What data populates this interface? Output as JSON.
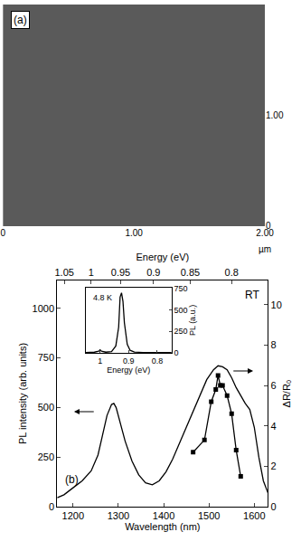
{
  "chart_data": [
    {
      "type": "image",
      "annotations": [
        "(a)"
      ],
      "x_label": "µm",
      "xlim": [
        0,
        2
      ],
      "xticks": [
        0,
        {
          "value": 1,
          "label": "1.00"
        },
        {
          "value": 2,
          "label": "2.00"
        }
      ],
      "ylim": [
        0,
        2
      ],
      "yticks": [
        0,
        {
          "value": 1,
          "label": "1.00"
        },
        {
          "value": 2,
          "label": "2.00"
        }
      ]
    },
    {
      "type": "line",
      "annotations": [
        "(b)",
        "RT"
      ],
      "x_label": "Wavelength (nm)",
      "y_label": "PL intensity (arb. units)",
      "y2_label": "ΔR/R₀",
      "x2_label": "Energy (eV)",
      "xlim": [
        1165,
        1630
      ],
      "xticks": [
        1200,
        1300,
        1400,
        1500,
        1600
      ],
      "x2lim": [
        1165,
        1630
      ],
      "x2ticks": [
        {
          "value": 1180.8,
          "label": "1.05"
        },
        {
          "value": 1239.8,
          "label": "1"
        },
        {
          "value": 1305.1,
          "label": "0.95"
        },
        {
          "value": 1377.6,
          "label": "0.9"
        },
        {
          "value": 1458.6,
          "label": "0.85"
        },
        {
          "value": 1549.8,
          "label": "0.8"
        }
      ],
      "ylim": [
        0,
        1140
      ],
      "yticks": [
        0,
        250,
        500,
        750,
        1000
      ],
      "y2lim": [
        0,
        11.2
      ],
      "y2ticks": [
        0,
        2,
        4,
        6,
        8,
        10
      ],
      "series": [
        {
          "color": "#000000",
          "line_style": "solid",
          "x": [
            1165,
            1180,
            1200,
            1220,
            1240,
            1255,
            1265,
            1275,
            1285,
            1290,
            1295,
            1305,
            1315,
            1330,
            1345,
            1360,
            1375,
            1390,
            1405,
            1420,
            1435,
            1450,
            1465,
            1480,
            1495,
            1510,
            1520,
            1530,
            1540,
            1550,
            1560,
            1570,
            1580,
            1590,
            1600,
            1610,
            1620,
            1630
          ],
          "values": [
            45,
            60,
            95,
            130,
            180,
            260,
            360,
            460,
            515,
            520,
            500,
            420,
            330,
            230,
            160,
            120,
            110,
            130,
            175,
            240,
            320,
            400,
            480,
            560,
            640,
            690,
            710,
            705,
            690,
            650,
            600,
            560,
            520,
            490,
            400,
            250,
            130,
            70
          ]
        },
        {
          "color": "#000000",
          "line_style": "solid",
          "marker": "square",
          "axis": "y2",
          "x": [
            1465,
            1490,
            1505,
            1515,
            1520,
            1525,
            1530,
            1540,
            1550,
            1560,
            1570
          ],
          "values": [
            2.7,
            3.3,
            5.2,
            5.8,
            6.5,
            6.0,
            6.0,
            5.5,
            4.6,
            2.8,
            1.5
          ]
        }
      ]
    },
    {
      "type": "line",
      "annotations": [
        "4.8 K"
      ],
      "x_label": "Energy (eV)",
      "y_label": "PL (a.u.)",
      "xlim": [
        1.05,
        0.75
      ],
      "xticks": [
        1,
        0.9,
        0.8
      ],
      "ylim": [
        0,
        760
      ],
      "yticks": [
        0,
        250,
        500,
        750
      ],
      "series": [
        {
          "color": "#000000",
          "line_style": "solid",
          "x": [
            1.05,
            1.02,
            1.005,
            1.0,
            0.995,
            0.98,
            0.96,
            0.945,
            0.935,
            0.93,
            0.925,
            0.92,
            0.915,
            0.905,
            0.895,
            0.88,
            0.85,
            0.8,
            0.75
          ],
          "values": [
            5,
            8,
            20,
            35,
            20,
            8,
            15,
            80,
            300,
            650,
            700,
            600,
            350,
            100,
            30,
            10,
            5,
            5,
            5
          ]
        }
      ]
    }
  ]
}
